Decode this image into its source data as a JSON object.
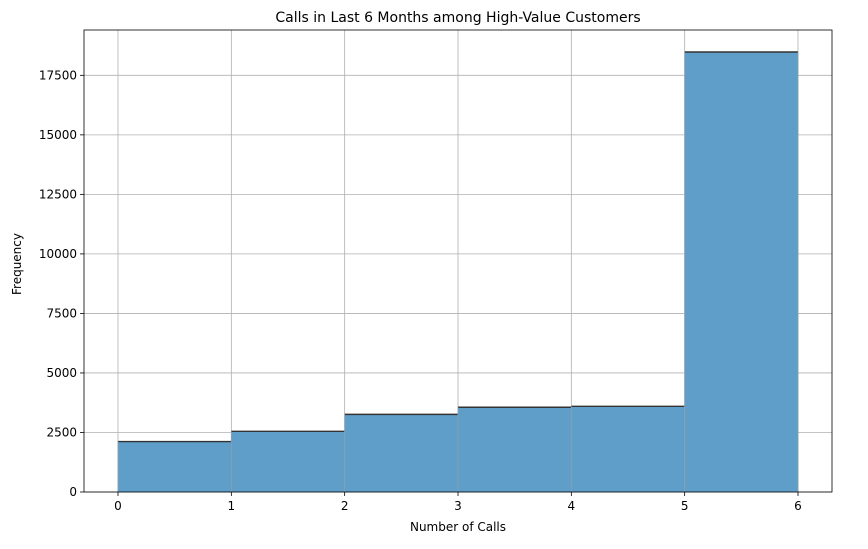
{
  "chart_data": {
    "type": "bar",
    "title": "Calls in Last 6 Months among High-Value Customers",
    "xlabel": "Number of Calls",
    "ylabel": "Frequency",
    "bins": [
      {
        "start": 0,
        "end": 1,
        "value": 2120
      },
      {
        "start": 1,
        "end": 2,
        "value": 2550
      },
      {
        "start": 2,
        "end": 3,
        "value": 3260
      },
      {
        "start": 3,
        "end": 4,
        "value": 3560
      },
      {
        "start": 4,
        "end": 5,
        "value": 3600
      },
      {
        "start": 5,
        "end": 6,
        "value": 18480
      }
    ],
    "x_ticks": [
      "0",
      "1",
      "2",
      "3",
      "4",
      "5",
      "6"
    ],
    "x_tick_values": [
      0,
      1,
      2,
      3,
      4,
      5,
      6
    ],
    "y_ticks": [
      "0",
      "2500",
      "5000",
      "7500",
      "10000",
      "12500",
      "15000",
      "17500"
    ],
    "y_tick_values": [
      0,
      2500,
      5000,
      7500,
      10000,
      12500,
      15000,
      17500
    ],
    "xlim": [
      -0.3,
      6.3
    ],
    "ylim": [
      0,
      19404
    ],
    "grid": true,
    "bar_color": "#5f9ec9",
    "bar_edge_color": "#333333"
  }
}
